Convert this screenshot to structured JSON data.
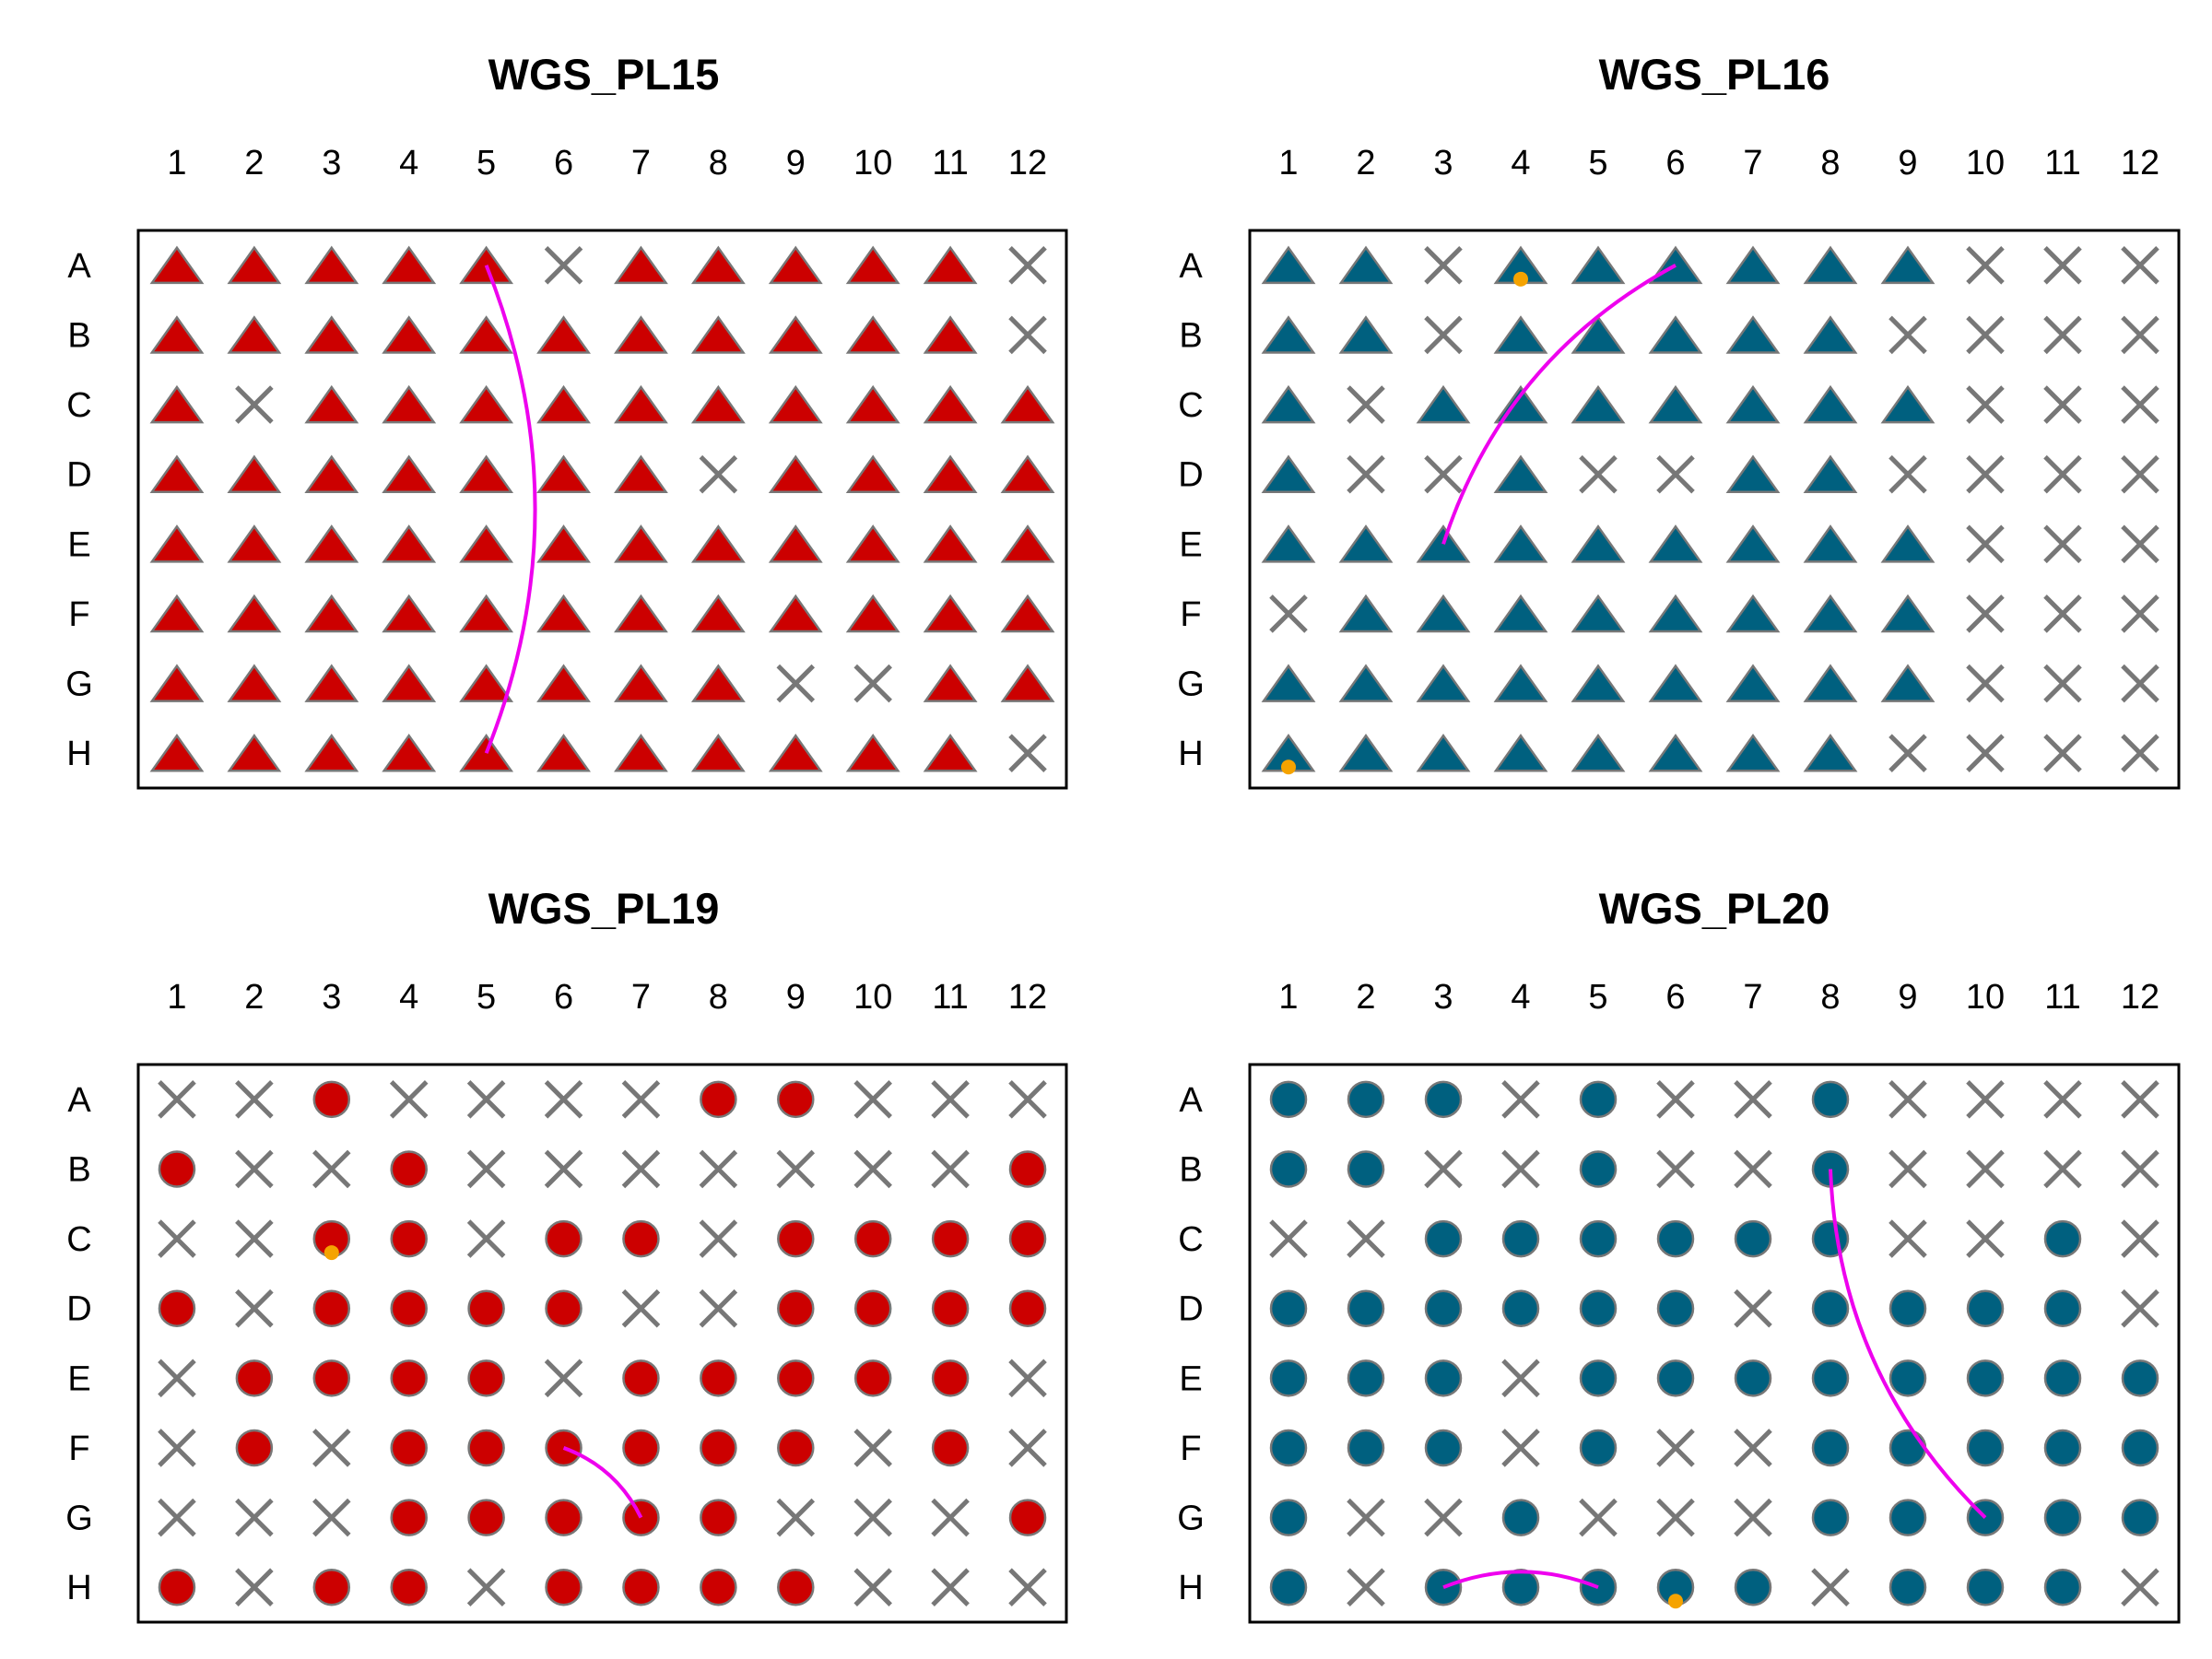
{
  "chart_data": [
    {
      "type": "plate-layout",
      "title": "WGS_PL15",
      "columns": [
        "1",
        "2",
        "3",
        "4",
        "5",
        "6",
        "7",
        "8",
        "9",
        "10",
        "11",
        "12"
      ],
      "rows": [
        "A",
        "B",
        "C",
        "D",
        "E",
        "F",
        "G",
        "H"
      ],
      "marker": "triangle",
      "fill": "#CC0000",
      "wells": [
        "TTTTTXTTTTTX",
        "TTTTTTTTTTTX",
        "TXTTTTTTTTTT",
        "TTTTTTTXTTTT",
        "TTTTTTTTTTTT",
        "TTTTTTTTTTTT",
        "TTTTTTTTXXTT",
        "TTTTTTTTTTTX"
      ],
      "flagged_wells": [],
      "links": [
        {
          "from": "A5",
          "to": "H5",
          "bend": -0.2
        }
      ]
    },
    {
      "type": "plate-layout",
      "title": "WGS_PL16",
      "columns": [
        "1",
        "2",
        "3",
        "4",
        "5",
        "6",
        "7",
        "8",
        "9",
        "10",
        "11",
        "12"
      ],
      "rows": [
        "A",
        "B",
        "C",
        "D",
        "E",
        "F",
        "G",
        "H"
      ],
      "marker": "triangle",
      "fill": "#00607F",
      "wells": [
        "TTXTTTTTTXXX",
        "TTXTTTTTXXXX",
        "TXTTTTTTTXXX",
        "TXXTXXTTXXXX",
        "TTTTTTTTTXXX",
        "XTTTTTTTTXXX",
        "TTTTTTTTTXXX",
        "TTTTTTTTXXXX"
      ],
      "flagged_wells": [
        "A4",
        "H1"
      ],
      "links": [
        {
          "from": "A6",
          "to": "E3",
          "bend": 0.2
        }
      ]
    },
    {
      "type": "plate-layout",
      "title": "WGS_PL19",
      "columns": [
        "1",
        "2",
        "3",
        "4",
        "5",
        "6",
        "7",
        "8",
        "9",
        "10",
        "11",
        "12"
      ],
      "rows": [
        "A",
        "B",
        "C",
        "D",
        "E",
        "F",
        "G",
        "H"
      ],
      "marker": "circle",
      "fill": "#CC0000",
      "wells": [
        "XXOXXXXOOXXX",
        "OXXOXXXXXXXO",
        "XXOOXOOXOOOO",
        "OXOOOOXXOOOO",
        "XOOOOXOOOOOX",
        "XOXOOOOOOXOX",
        "XXXOOOOOXXXO",
        "OXOOXOOOOXXX"
      ],
      "flagged_wells": [
        "C3"
      ],
      "links": [
        {
          "from": "F6",
          "to": "G7",
          "bend": -0.2
        }
      ]
    },
    {
      "type": "plate-layout",
      "title": "WGS_PL20",
      "columns": [
        "1",
        "2",
        "3",
        "4",
        "5",
        "6",
        "7",
        "8",
        "9",
        "10",
        "11",
        "12"
      ],
      "rows": [
        "A",
        "B",
        "C",
        "D",
        "E",
        "F",
        "G",
        "H"
      ],
      "marker": "circle",
      "fill": "#00607F",
      "wells": [
        "OOOXOXXOXXXX",
        "OOXXOXXOXXXX",
        "XXOOOOOOXXOX",
        "OOOOOOXOOOOX",
        "OOOXOOOOOOOO",
        "OOOXOXXOOOOO",
        "OXXOXXXOOOOO",
        "OXOOOOOXOOOX"
      ],
      "flagged_wells": [
        "H6"
      ],
      "links": [
        {
          "from": "B8",
          "to": "G10",
          "bend": 0.2
        },
        {
          "from": "H3",
          "to": "H5",
          "bend": -0.2
        }
      ]
    }
  ],
  "legend_codes": {
    "T": "triangle sample",
    "O": "circle sample",
    "X": "empty well"
  },
  "colors": {
    "cross": "#777777",
    "marker_outline": "#777777",
    "flag": "#F5A300",
    "link": "#EE00EE",
    "frame": "#000000"
  }
}
